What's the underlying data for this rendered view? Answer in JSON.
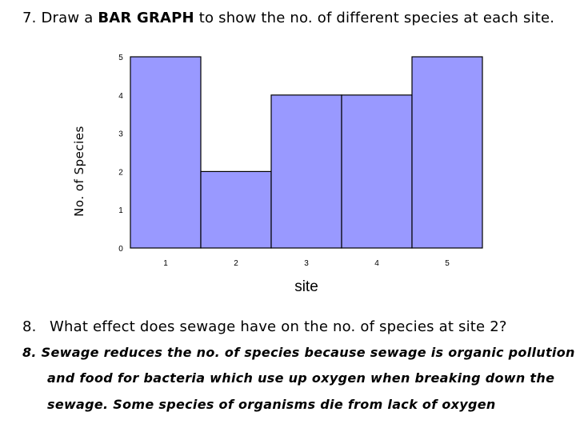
{
  "question7": {
    "number": "7.",
    "lead": "Draw a",
    "bold": "BAR GRAPH",
    "tail": "to show the no. of different species at each site."
  },
  "chart_data": {
    "type": "bar",
    "categories": [
      "1",
      "2",
      "3",
      "4",
      "5"
    ],
    "values": [
      5,
      2,
      4,
      4,
      5
    ],
    "xlabel": "site",
    "ylabel": "No. of Species",
    "ylim": [
      0,
      5
    ],
    "yticks": [
      "0",
      "1",
      "2",
      "3",
      "4",
      "5"
    ],
    "bar_color": "#9999ff",
    "grid": false,
    "legend": "none"
  },
  "question8": {
    "number": "8.",
    "text": "What effect does sewage have on the no. of species at site 2?"
  },
  "answer8": {
    "line1": "8. Sewage reduces the no. of species because sewage is organic pollution",
    "line2": "and food for bacteria which use up oxygen when breaking down the",
    "line3": "sewage. Some species of organisms die from lack of oxygen",
    "color": "#000000"
  }
}
